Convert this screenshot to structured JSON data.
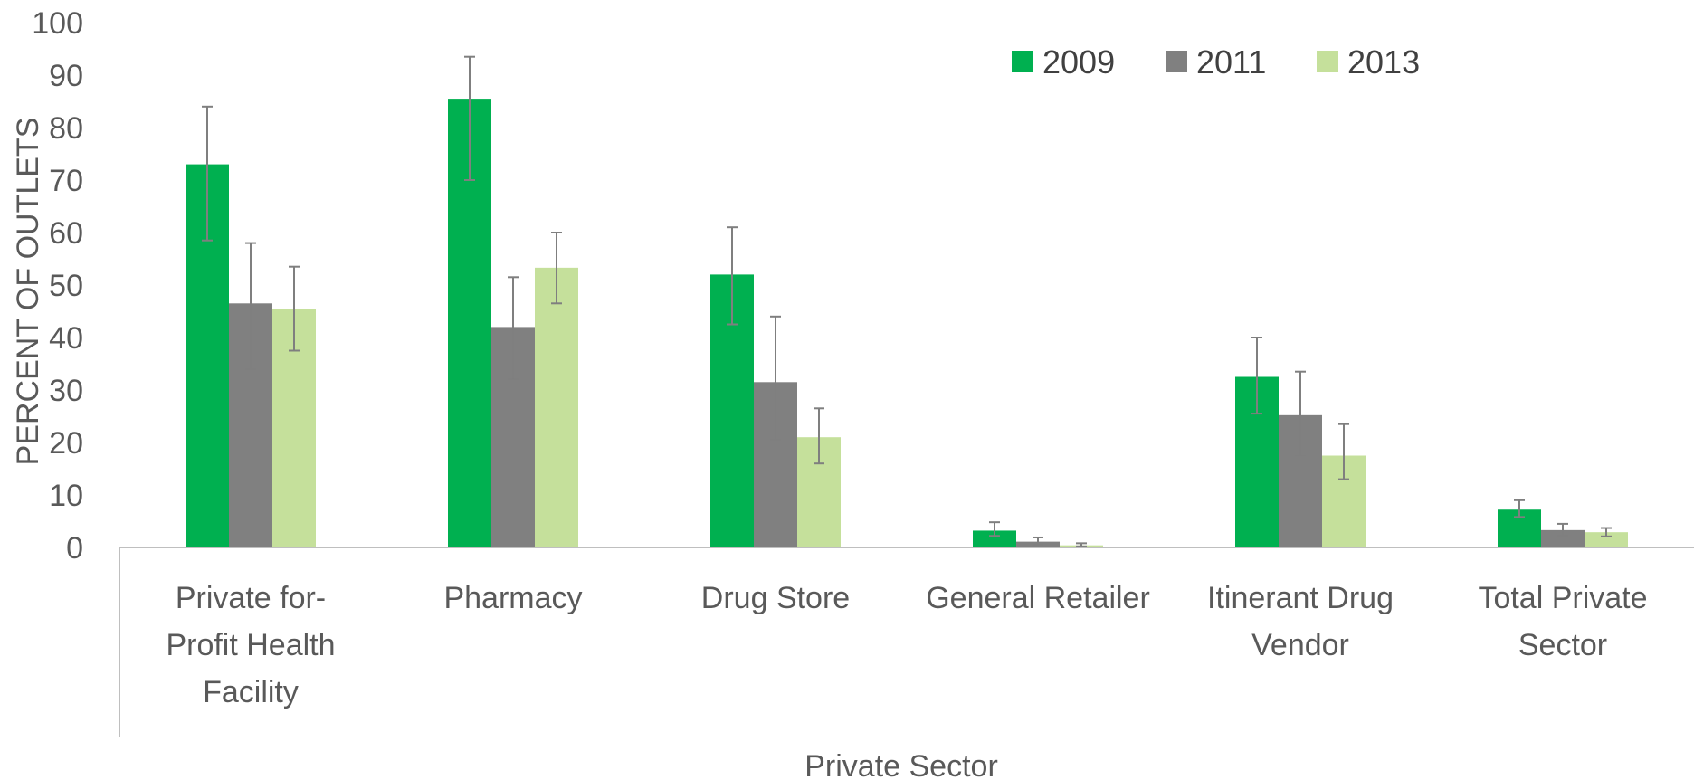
{
  "chart_data": {
    "type": "bar",
    "title": "",
    "xlabel": "Private Sector",
    "ylabel": "PERCENT OF OUTLETS",
    "ylim": [
      0,
      100
    ],
    "yticks": [
      0,
      10,
      20,
      30,
      40,
      50,
      60,
      70,
      80,
      90,
      100
    ],
    "grid": false,
    "legend": "top-right",
    "categories": [
      [
        "Private for-",
        "Profit Health",
        "Facility"
      ],
      [
        "Pharmacy"
      ],
      [
        "Drug Store"
      ],
      [
        "General Retailer"
      ],
      [
        "Itinerant Drug",
        "Vendor"
      ],
      [
        "Total Private",
        "Sector"
      ]
    ],
    "series": [
      {
        "name": "2009",
        "color": "#00b050",
        "values": [
          73,
          85.5,
          52,
          3.2,
          32.5,
          7.2
        ],
        "error_low": [
          58.5,
          70,
          42.5,
          2.2,
          25.5,
          5.8
        ],
        "error_high": [
          84,
          93.5,
          61,
          4.8,
          40,
          9
        ]
      },
      {
        "name": "2011",
        "color": "#808080",
        "values": [
          46.5,
          42,
          31.5,
          1.1,
          25.2,
          3.3
        ],
        "error_low": [
          34,
          32,
          20.5,
          0.5,
          17.5,
          2.3
        ],
        "error_high": [
          58,
          51.5,
          44,
          1.9,
          33.5,
          4.5
        ]
      },
      {
        "name": "2013",
        "color": "#c5e09b",
        "values": [
          45.5,
          53.3,
          21,
          0.4,
          17.5,
          2.9
        ],
        "error_low": [
          37.5,
          46.5,
          16,
          0.2,
          13,
          2.1
        ],
        "error_high": [
          53.5,
          60,
          26.5,
          0.8,
          23.5,
          3.7
        ]
      }
    ]
  }
}
